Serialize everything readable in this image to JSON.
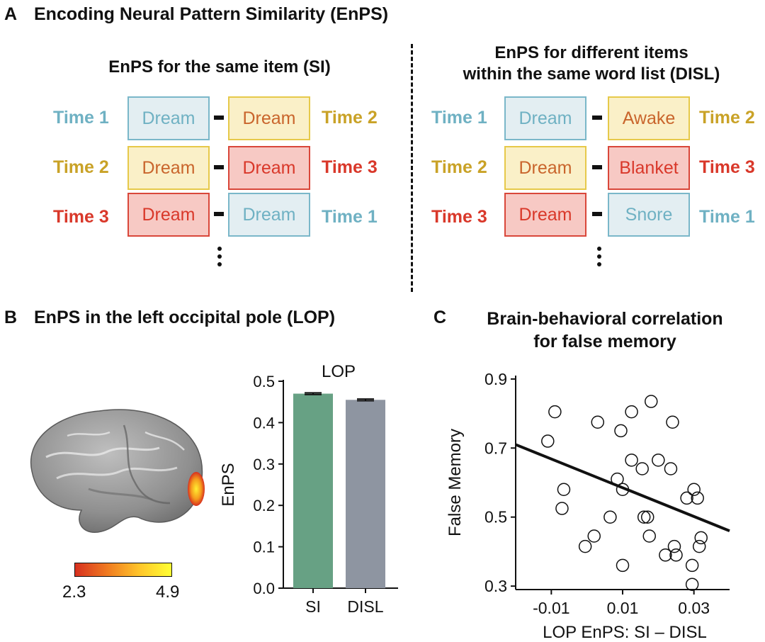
{
  "panel_a": {
    "letter": "A",
    "title": "Encoding Neural Pattern Similarity (EnPS)",
    "left": {
      "title": "EnPS for the same item (SI)",
      "rows": [
        {
          "time_left": "Time 1",
          "word_left": "Dream",
          "word_right": "Dream",
          "time_right": "Time 2"
        },
        {
          "time_left": "Time 2",
          "word_left": "Dream",
          "word_right": "Dream",
          "time_right": "Time 3"
        },
        {
          "time_left": "Time 3",
          "word_left": "Dream",
          "word_right": "Dream",
          "time_right": "Time 1"
        }
      ]
    },
    "right": {
      "title_line1": "EnPS for different items",
      "title_line2": "within the same word list (DISL)",
      "rows": [
        {
          "time_left": "Time 1",
          "word_left": "Dream",
          "word_right": "Awake",
          "time_right": "Time 2"
        },
        {
          "time_left": "Time 2",
          "word_left": "Dream",
          "word_right": "Blanket",
          "time_right": "Time 3"
        },
        {
          "time_left": "Time 3",
          "word_left": "Dream",
          "word_right": "Snore",
          "time_right": "Time 1"
        }
      ]
    },
    "colors": {
      "time1_text": "#6fb1c3",
      "time1_fill": "#e3eef2",
      "time1_border": "#7ab7c9",
      "time2_text": "#c9a227",
      "time2_fill": "#faf0c8",
      "time2_border": "#e6c94a",
      "time3_text": "#d9382a",
      "time3_fill": "#f7c9c4",
      "time3_border": "#d9473a",
      "word_time2_text": "#c9652c"
    }
  },
  "panel_b": {
    "letter": "B",
    "title": "EnPS in the left occipital pole (LOP)",
    "colorbar": {
      "min_label": "2.3",
      "max_label": "4.9",
      "color_low": "#d7301f",
      "color_high": "#ffff33"
    },
    "chart_data": {
      "type": "bar",
      "title": "LOP",
      "categories": [
        "SI",
        "DISL"
      ],
      "values": [
        0.47,
        0.455
      ],
      "errors": [
        0.002,
        0.002
      ],
      "colors": [
        "#67a184",
        "#8e95a1"
      ],
      "ylabel": "EnPS",
      "ylim": [
        0,
        0.5
      ],
      "yticks": [
        "0.0",
        "0.1",
        "0.2",
        "0.3",
        "0.4",
        "0.5"
      ]
    }
  },
  "panel_c": {
    "letter": "C",
    "title_line1": "Brain-behavioral correlation",
    "title_line2": "for false memory",
    "chart_data": {
      "type": "scatter",
      "xlabel": "LOP EnPS: SI – DISL",
      "ylabel": "False Memory",
      "xlim": [
        -0.02,
        0.04
      ],
      "ylim": [
        0.29,
        0.91
      ],
      "xticks": [
        "-0.01",
        "0.01",
        "0.03"
      ],
      "yticks": [
        "0.3",
        "0.5",
        "0.7",
        "0.9"
      ],
      "points": [
        [
          -0.009,
          0.805
        ],
        [
          -0.011,
          0.72
        ],
        [
          -0.0065,
          0.58
        ],
        [
          -0.007,
          0.525
        ],
        [
          -0.0005,
          0.415
        ],
        [
          0.003,
          0.775
        ],
        [
          0.002,
          0.445
        ],
        [
          0.0065,
          0.5
        ],
        [
          0.0085,
          0.61
        ],
        [
          0.0095,
          0.75
        ],
        [
          0.01,
          0.36
        ],
        [
          0.01,
          0.58
        ],
        [
          0.0125,
          0.805
        ],
        [
          0.0125,
          0.665
        ],
        [
          0.0155,
          0.64
        ],
        [
          0.016,
          0.5
        ],
        [
          0.017,
          0.5
        ],
        [
          0.0175,
          0.445
        ],
        [
          0.018,
          0.835
        ],
        [
          0.02,
          0.665
        ],
        [
          0.024,
          0.775
        ],
        [
          0.0235,
          0.64
        ],
        [
          0.0245,
          0.415
        ],
        [
          0.025,
          0.39
        ],
        [
          0.022,
          0.39
        ],
        [
          0.028,
          0.555
        ],
        [
          0.03,
          0.58
        ],
        [
          0.031,
          0.555
        ],
        [
          0.0295,
          0.36
        ],
        [
          0.0295,
          0.305
        ],
        [
          0.032,
          0.44
        ],
        [
          0.0315,
          0.415
        ]
      ],
      "fit_line": {
        "x": [
          -0.02,
          0.04
        ],
        "y": [
          0.71,
          0.46
        ]
      }
    }
  }
}
